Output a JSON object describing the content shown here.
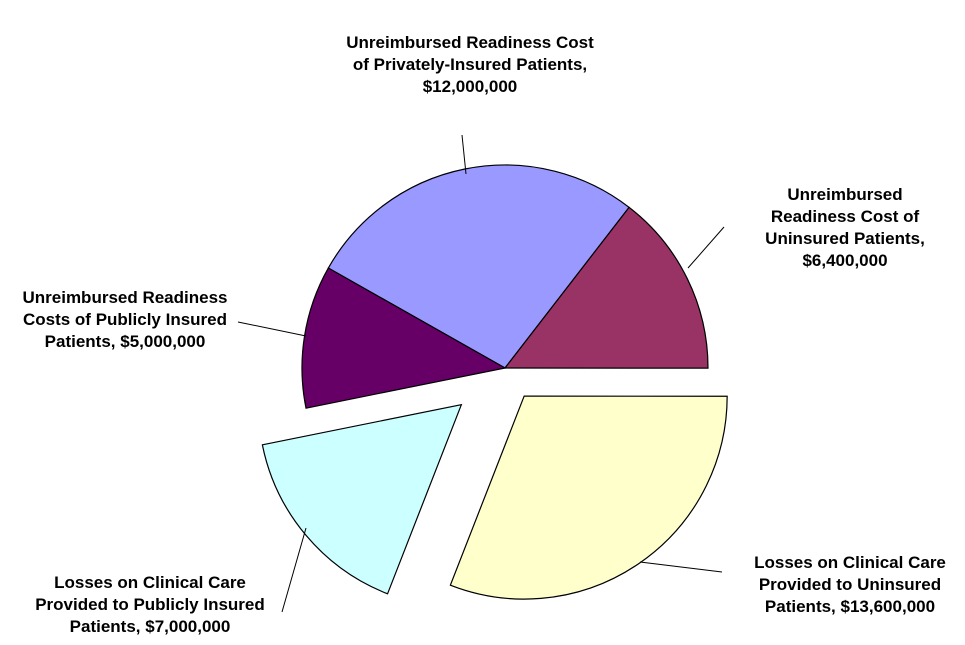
{
  "chart_data": {
    "type": "pie",
    "categories": [
      "Unreimbursed Readiness Cost of Privately-Insured Patients,",
      "Unreimbursed Readiness Cost of Uninsured Patients,",
      "Losses on Clinical Care Provided to Uninsured Patients,",
      "Losses on Clinical Care Provided to Publicly Insured Patients,",
      "Unreimbursed Readiness Costs of Publicly Insured Patients,"
    ],
    "values": [
      12000000,
      6400000,
      13600000,
      7000000,
      5000000
    ],
    "value_labels": [
      "$12,000,000",
      "$6,400,000",
      "$13,600,000",
      "$7,000,000",
      "$5,000,000"
    ],
    "colors": [
      "#9999ff",
      "#993366",
      "#ffffcc",
      "#ccffff",
      "#660066"
    ],
    "exploded": [
      false,
      false,
      true,
      true,
      false
    ]
  }
}
